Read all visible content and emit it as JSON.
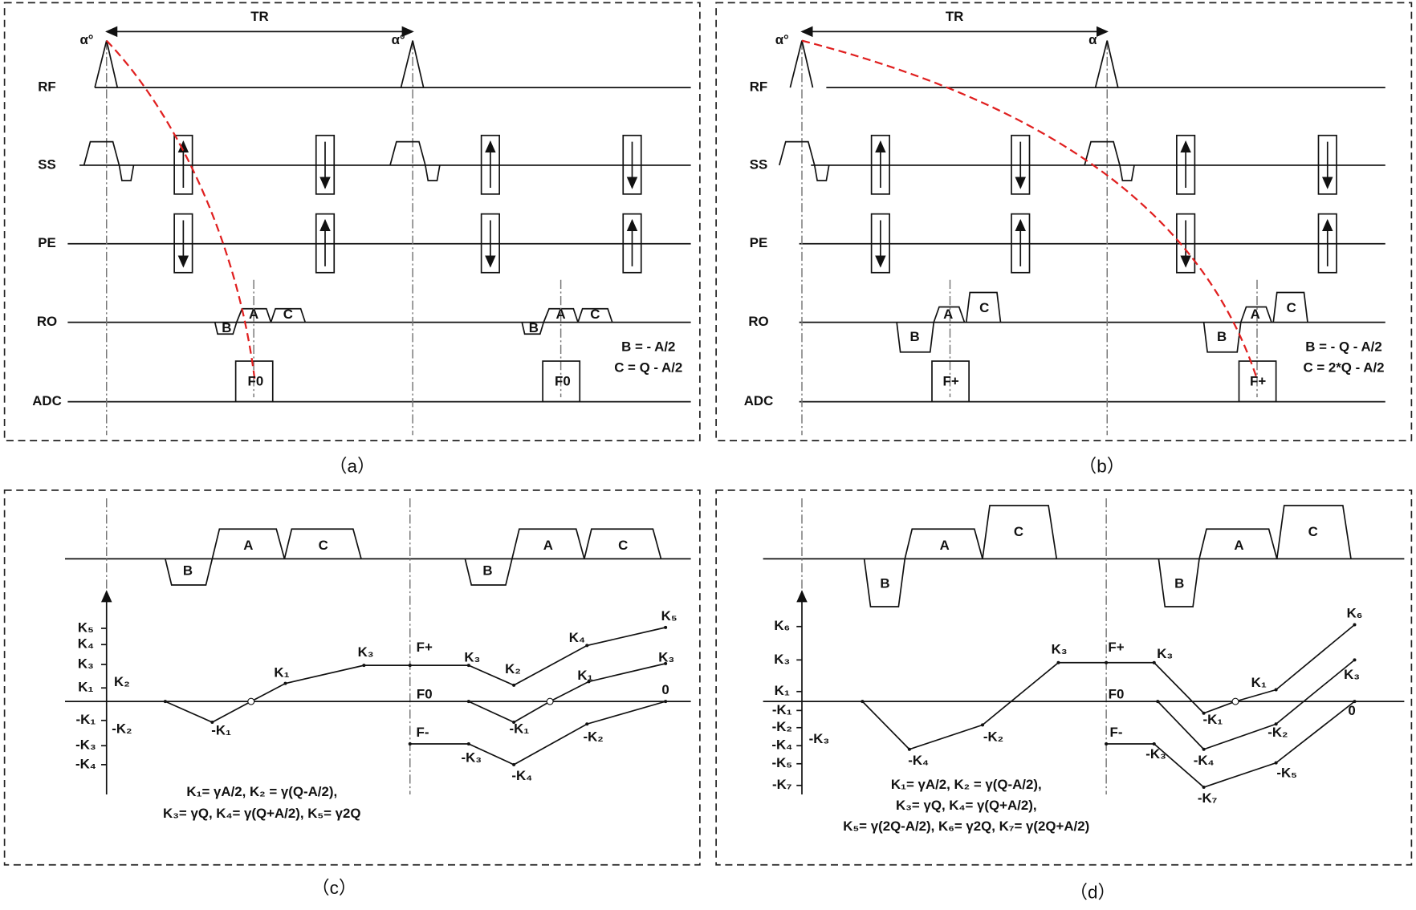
{
  "panel_a": {
    "caption": "（a）",
    "tr": "TR",
    "alpha": [
      "α°",
      "α°"
    ],
    "rows": [
      "RF",
      "SS",
      "PE",
      "RO",
      "ADC"
    ],
    "ro": [
      "B",
      "A",
      "C",
      "B",
      "A",
      "C"
    ],
    "adc": [
      "F0",
      "F0"
    ],
    "formulas": [
      "B =  - A/2",
      "C = Q - A/2"
    ]
  },
  "panel_b": {
    "caption": "（b）",
    "tr": "TR",
    "alpha": [
      "α°",
      "α"
    ],
    "rows": [
      "RF",
      "SS",
      "PE",
      "RO",
      "ADC"
    ],
    "ro": [
      "B",
      "A",
      "C",
      "B",
      "A",
      "C"
    ],
    "adc": [
      "F+",
      "F+"
    ],
    "formulas": [
      "B = - Q - A/2",
      "C = 2*Q - A/2"
    ]
  },
  "panel_c": {
    "caption": "（c）",
    "ro": [
      "B",
      "A",
      "C",
      "B",
      "A",
      "C"
    ],
    "axis": [
      "K₅",
      "K₄",
      "K₃",
      "K₁",
      "K₂",
      "-K₁",
      "-K₂",
      "-K₃",
      "-K₄"
    ],
    "states": [
      "F+",
      "F0",
      "F-"
    ],
    "points": [
      "-K₁",
      "K₁",
      "K₃",
      "K₃",
      "K₂",
      "K₄",
      "K₅",
      "-K₁",
      "K₁",
      "K₃",
      "0",
      "-K₃",
      "-K₄",
      "-K₂"
    ],
    "formulas": [
      "K₁=  γA/2, K₂ = γ(Q-A/2),",
      "K₃= γQ, K₄= γ(Q+A/2), K₅= γ2Q"
    ]
  },
  "panel_d": {
    "caption": "（d）",
    "ro": [
      "B",
      "A",
      "C",
      "B",
      "A",
      "C"
    ],
    "axis": [
      "K₆",
      "K₃",
      "K₁",
      "-K₁",
      "-K₂",
      "-K₄",
      "-K₅",
      "-K₇",
      "-K₃"
    ],
    "states": [
      "F+",
      "F0",
      "F-"
    ],
    "points": [
      "-K₄",
      "-K₂",
      "K₃",
      "K₃",
      "-K₁",
      "K₁",
      "K₆",
      "-K₂",
      "K₃",
      "0",
      "-K₃",
      "-K₄",
      "-K₅",
      "-K₇"
    ],
    "formulas": [
      "K₁=  γA/2, K₂ = γ(Q-A/2),",
      "K₃=  γQ,  K₄= γ(Q+A/2),",
      "K₅= γ(2Q-A/2), K₆= γ2Q, K₇= γ(2Q+A/2)"
    ]
  }
}
